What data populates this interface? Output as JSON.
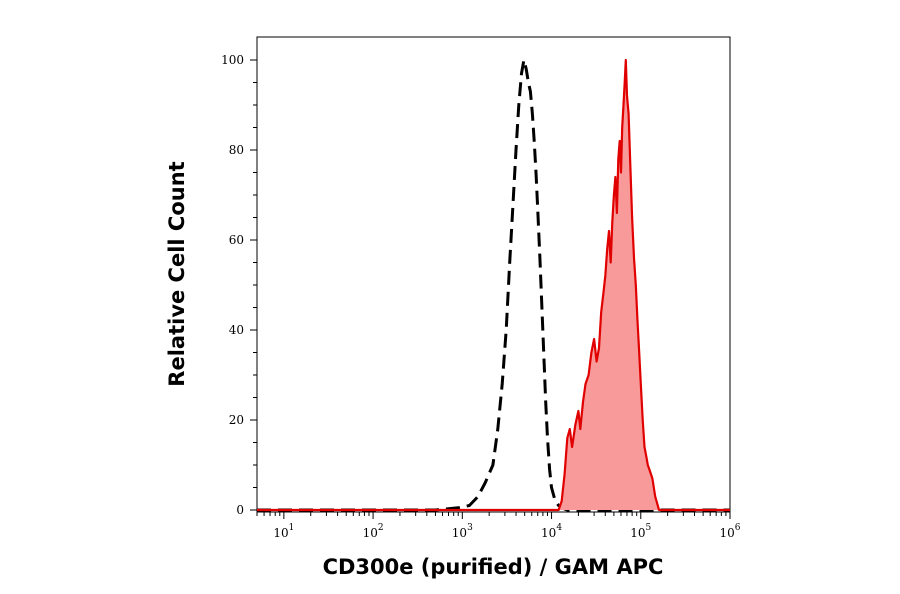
{
  "chart_data": {
    "type": "area",
    "xlabel": "CD300e (purified) / GAM APC",
    "ylabel": "Relative Cell Count",
    "x_scale": "log",
    "xlim": [
      5,
      1000000
    ],
    "ylim": [
      0,
      100
    ],
    "x_ticks": [
      {
        "value": 10,
        "base": "10",
        "exp": "1"
      },
      {
        "value": 100,
        "base": "10",
        "exp": "2"
      },
      {
        "value": 1000,
        "base": "10",
        "exp": "3"
      },
      {
        "value": 10000,
        "base": "10",
        "exp": "4"
      },
      {
        "value": 100000,
        "base": "10",
        "exp": "5"
      },
      {
        "value": 1000000,
        "base": "10",
        "exp": "6"
      }
    ],
    "y_ticks": [
      "0",
      "20",
      "40",
      "60",
      "80",
      "100"
    ],
    "grid": false,
    "legend": "none",
    "series": [
      {
        "style": "dashed",
        "color": "#000000",
        "fill": "none",
        "x": [
          5,
          500,
          900,
          1200,
          1500,
          1800,
          2200,
          2500,
          2800,
          3100,
          3400,
          3700,
          4000,
          4300,
          4600,
          4900,
          5200,
          5500,
          5800,
          6100,
          6400,
          6700,
          7000,
          7400,
          7800,
          8200,
          8600,
          9000,
          9500,
          10000,
          11000,
          12000,
          13000,
          15000,
          20000,
          1000000
        ],
        "y": [
          0,
          0,
          0.5,
          1,
          3,
          6,
          10,
          18,
          28,
          40,
          55,
          68,
          80,
          90,
          97,
          100,
          98,
          95,
          93,
          88,
          82,
          75,
          67,
          56,
          45,
          34,
          24,
          16,
          9,
          5,
          2,
          1,
          0.5,
          0,
          0,
          0
        ]
      },
      {
        "style": "solid",
        "color": "#e00000",
        "fill": "#f99a9a",
        "x": [
          5,
          12000,
          13000,
          14000,
          15000,
          16000,
          17000,
          18500,
          20000,
          21000,
          22500,
          24000,
          26000,
          28000,
          30000,
          32000,
          34000,
          36000,
          38000,
          40000,
          42000,
          44000,
          46000,
          48000,
          50000,
          52000,
          54000,
          56000,
          58000,
          60000,
          62000,
          64000,
          66000,
          68000,
          70000,
          73000,
          76000,
          80000,
          84000,
          88000,
          92000,
          96000,
          100000,
          105000,
          110000,
          115000,
          120000,
          125000,
          130000,
          135000,
          140000,
          145000,
          150000,
          160000,
          1000000
        ],
        "y": [
          0,
          0,
          2,
          8,
          16,
          18,
          14,
          19,
          22,
          18,
          24,
          28,
          30,
          35,
          38,
          33,
          36,
          44,
          48,
          52,
          58,
          62,
          55,
          64,
          70,
          74,
          66,
          78,
          82,
          75,
          85,
          90,
          95,
          100,
          92,
          88,
          78,
          65,
          56,
          50,
          42,
          35,
          28,
          20,
          14,
          12,
          10,
          9,
          8,
          7,
          5,
          3,
          2,
          0,
          0
        ]
      }
    ]
  }
}
